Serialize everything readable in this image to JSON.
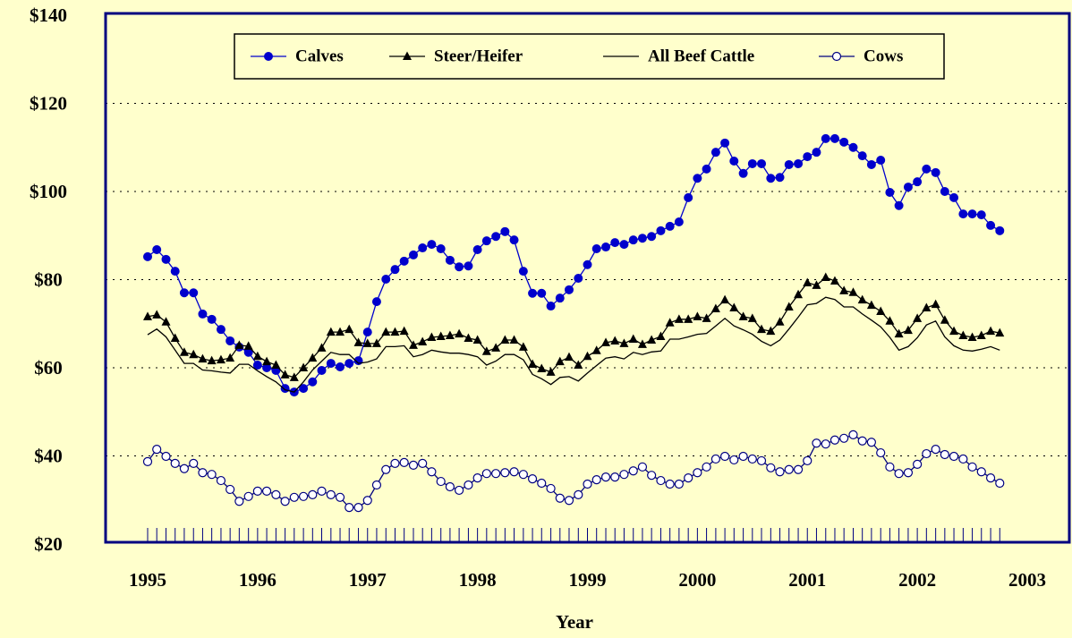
{
  "chart_data": {
    "type": "line",
    "xlabel": "Year",
    "xlim": [
      1995,
      2003
    ],
    "xticks": [
      1995,
      1996,
      1997,
      1998,
      1999,
      2000,
      2001,
      2002,
      2003
    ],
    "ylim": [
      20,
      140
    ],
    "yticks": [
      {
        "value": 20,
        "label": "$20"
      },
      {
        "value": 40,
        "label": "$40"
      },
      {
        "value": 60,
        "label": "$60"
      },
      {
        "value": 80,
        "label": "$80"
      },
      {
        "value": 100,
        "label": "$100"
      },
      {
        "value": 120,
        "label": "$120"
      },
      {
        "value": 140,
        "label": "$140"
      }
    ],
    "grid": true,
    "legend": "top",
    "x": [
      1995,
      1995.083,
      1995.167,
      1995.25,
      1995.333,
      1995.417,
      1995.5,
      1995.583,
      1995.667,
      1995.75,
      1995.833,
      1995.917,
      1996,
      1996.083,
      1996.167,
      1996.25,
      1996.333,
      1996.417,
      1996.5,
      1996.583,
      1996.667,
      1996.75,
      1996.833,
      1996.917,
      1997,
      1997.083,
      1997.167,
      1997.25,
      1997.333,
      1997.417,
      1997.5,
      1997.583,
      1997.667,
      1997.75,
      1997.833,
      1997.917,
      1998,
      1998.083,
      1998.167,
      1998.25,
      1998.333,
      1998.417,
      1998.5,
      1998.583,
      1998.667,
      1998.75,
      1998.833,
      1998.917,
      1999,
      1999.083,
      1999.167,
      1999.25,
      1999.333,
      1999.417,
      1999.5,
      1999.583,
      1999.667,
      1999.75,
      1999.833,
      1999.917,
      2000,
      2000.083,
      2000.167,
      2000.25,
      2000.333,
      2000.417,
      2000.5,
      2000.583,
      2000.667,
      2000.75,
      2000.833,
      2000.917,
      2001,
      2001.083,
      2001.167,
      2001.25,
      2001.333,
      2001.417,
      2001.5,
      2001.583,
      2001.667,
      2001.75,
      2001.833,
      2001.917,
      2002,
      2002.083,
      2002.167,
      2002.25,
      2002.333,
      2002.417,
      2002.5,
      2002.583,
      2002.667,
      2002.75
    ],
    "series": [
      {
        "name": "Calves",
        "color": "#0000cc",
        "marker": "circle",
        "values": [
          85.2,
          86.8,
          84.6,
          81.9,
          77,
          77,
          72.2,
          71,
          68.7,
          66.1,
          64.7,
          63.5,
          60.6,
          60,
          59.4,
          55.3,
          54.5,
          55.3,
          56.8,
          59.4,
          61,
          60.2,
          61,
          61.6,
          68.1,
          75,
          80.1,
          82.3,
          84.2,
          85.6,
          87.2,
          88,
          87,
          84.4,
          82.9,
          83.1,
          86.8,
          88.8,
          89.8,
          90.9,
          89,
          81.9,
          76.9,
          76.9,
          74,
          75.8,
          77.7,
          80.3,
          83.4,
          87,
          87.4,
          88.4,
          88,
          89,
          89.4,
          89.8,
          91.1,
          92.1,
          93.1,
          98.6,
          103,
          105.1,
          108.9,
          111,
          106.9,
          104.1,
          106.3,
          106.3,
          103,
          103.2,
          106.1,
          106.3,
          107.9,
          108.9,
          112,
          112,
          111.2,
          110,
          108.1,
          106.1,
          107.1,
          99.8,
          96.8,
          101,
          102.2,
          105.1,
          104.3,
          100,
          98.6,
          94.9,
          94.9,
          94.7,
          92.3,
          91.1
        ]
      },
      {
        "name": "Steer/Heifer",
        "color": "#000000",
        "marker": "triangle",
        "values": [
          71.6,
          72,
          70.4,
          66.7,
          63.5,
          63,
          62,
          61.6,
          61.8,
          62.2,
          65.1,
          64.9,
          62.6,
          61.4,
          60.6,
          58.4,
          57.8,
          60,
          62.2,
          64.5,
          68.1,
          68.1,
          68.7,
          65.7,
          65.5,
          65.5,
          68.1,
          68.1,
          68.3,
          65.1,
          65.9,
          66.9,
          67.1,
          67.3,
          67.7,
          66.7,
          66.3,
          63.7,
          64.5,
          66.3,
          66.3,
          64.7,
          60.8,
          59.8,
          59,
          61.4,
          62.4,
          60.6,
          62.6,
          63.9,
          65.7,
          66.1,
          65.5,
          66.5,
          65.3,
          66.3,
          67.1,
          70.2,
          71,
          71,
          71.6,
          71.2,
          73.4,
          75.4,
          73.6,
          71.6,
          71.2,
          68.7,
          68.3,
          70.4,
          73.8,
          76.6,
          79.3,
          78.7,
          80.5,
          79.7,
          77.5,
          77.1,
          75.4,
          74.2,
          72.8,
          70.6,
          67.7,
          68.5,
          71.2,
          73.6,
          74.4,
          70.8,
          68.3,
          67.3,
          66.9,
          67.3,
          68.3,
          67.9
        ]
      },
      {
        "name": "All Beef Cattle",
        "color": "#000000",
        "marker": "none",
        "values": [
          67.5,
          68.8,
          67,
          64,
          61,
          61,
          59.5,
          59.3,
          59,
          58.8,
          60.8,
          60.8,
          59.3,
          58,
          56.8,
          55,
          54.5,
          56.8,
          59.5,
          61.5,
          63.5,
          63,
          63,
          61,
          61.3,
          62,
          64.8,
          64.8,
          65,
          62.5,
          63,
          64,
          63.6,
          63.3,
          63.3,
          63,
          62.5,
          60.6,
          61.5,
          63,
          63,
          61.8,
          58.5,
          57.5,
          56.2,
          57.8,
          58,
          57,
          58.8,
          60.5,
          62.2,
          62.5,
          62,
          63.5,
          63,
          63.6,
          63.8,
          66.5,
          66.5,
          67,
          67.6,
          67.8,
          69.5,
          71.2,
          69.5,
          68.6,
          67.6,
          66,
          65,
          66.3,
          68.8,
          71.5,
          74.3,
          74.6,
          76,
          75.5,
          73.8,
          73.8,
          72.2,
          70.8,
          69.3,
          66.9,
          64,
          64.8,
          66.8,
          69.7,
          70.6,
          67,
          65,
          64,
          63.8,
          64.2,
          64.8,
          64
        ]
      },
      {
        "name": "Cows",
        "color": "#000080",
        "marker": "open-circle",
        "values": [
          38.7,
          41.5,
          39.9,
          38.3,
          37.1,
          38.3,
          36.2,
          35.8,
          34.4,
          32.4,
          29.7,
          30.8,
          32,
          32,
          31.2,
          29.7,
          30.6,
          30.8,
          31.2,
          32,
          31.2,
          30.6,
          28.3,
          28.3,
          29.9,
          33.4,
          36.9,
          38.3,
          38.5,
          37.9,
          38.3,
          36.4,
          34.2,
          33,
          32.2,
          33.4,
          35,
          36,
          36,
          36.2,
          36.4,
          35.8,
          34.8,
          33.8,
          32.6,
          30.4,
          29.9,
          31.2,
          33.6,
          34.6,
          35.2,
          35.2,
          35.8,
          36.6,
          37.5,
          35.6,
          34.4,
          33.6,
          33.6,
          35,
          36.2,
          37.5,
          39.3,
          39.9,
          39.1,
          39.9,
          39.3,
          38.9,
          37.3,
          36.4,
          36.9,
          36.9,
          38.9,
          42.9,
          42.7,
          43.6,
          44,
          44.8,
          43.4,
          43.1,
          40.7,
          37.5,
          36,
          36.2,
          38.1,
          40.5,
          41.5,
          40.3,
          39.9,
          39.3,
          37.5,
          36.4,
          35,
          33.8
        ]
      }
    ]
  }
}
